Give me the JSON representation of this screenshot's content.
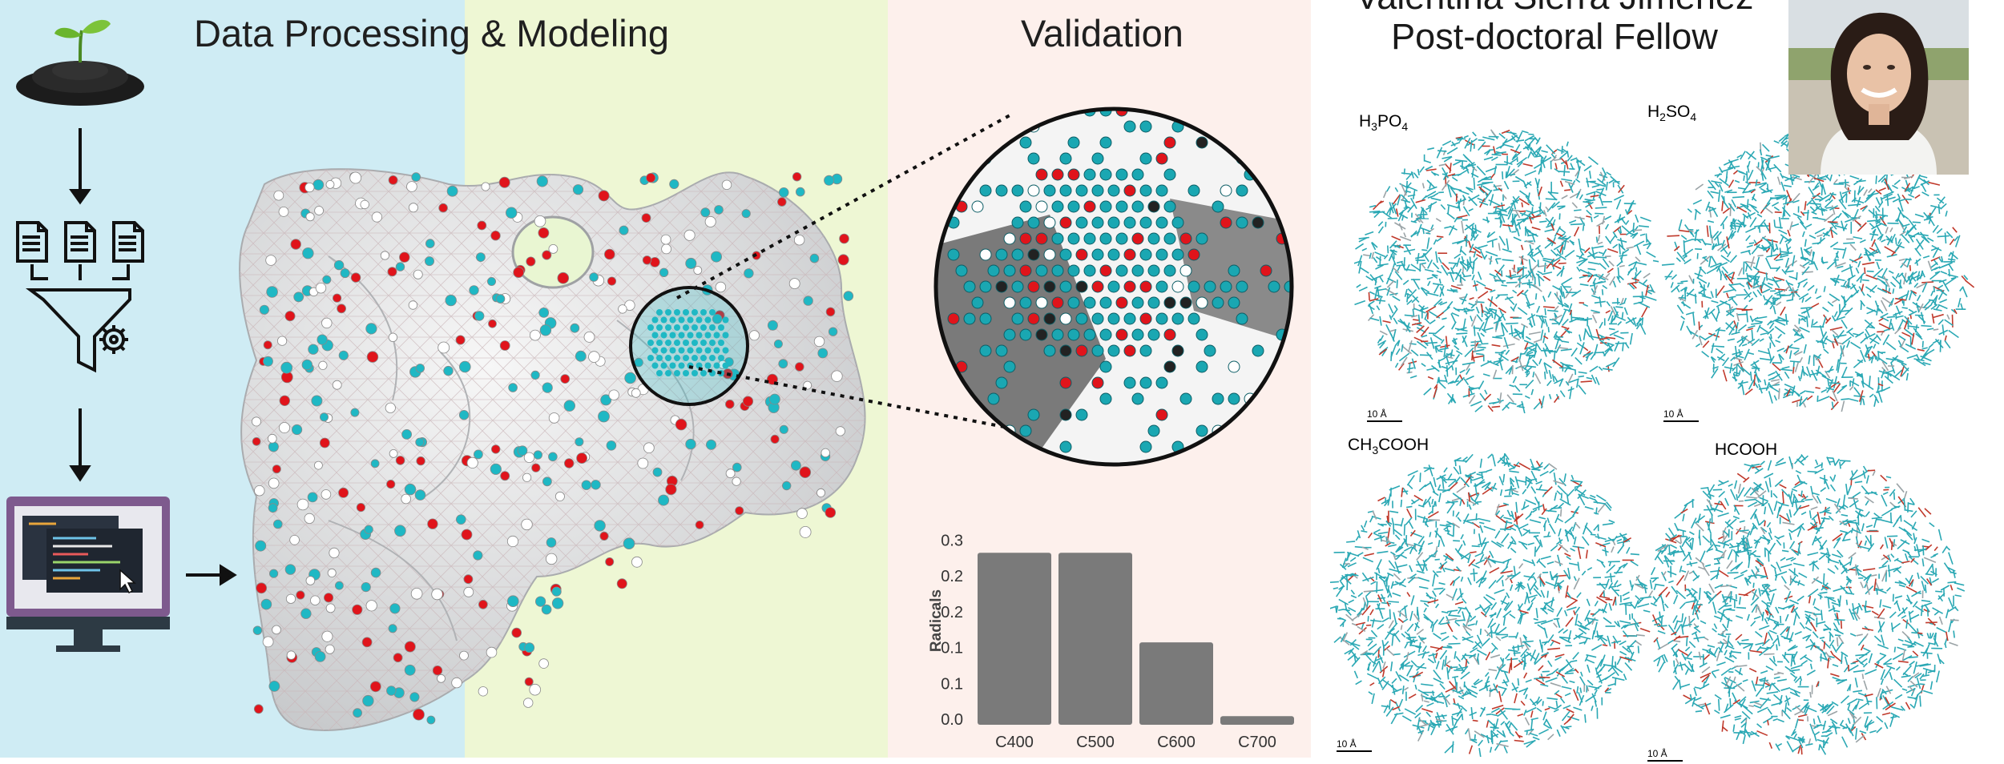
{
  "titles": {
    "left": "Data Processing & Modeling",
    "validation": "Validation"
  },
  "person": {
    "name": "Valentina Sierra Jiménez",
    "role": "Post-doctoral Fellow"
  },
  "structures": [
    {
      "formula": "H",
      "sub1": "3",
      "mid": "PO",
      "sub2": "4",
      "tail": ""
    },
    {
      "formula": "H",
      "sub1": "2",
      "mid": "SO",
      "sub2": "4",
      "tail": ""
    },
    {
      "formula": "CH",
      "sub1": "3",
      "mid": "COOH",
      "sub2": "",
      "tail": ""
    },
    {
      "formula": "HCOOH",
      "sub1": "",
      "mid": "",
      "sub2": "",
      "tail": ""
    }
  ],
  "scale_label": "10 Å",
  "colors": {
    "carbon": "#1fb8c4",
    "oxygen": "#e0141b",
    "hydrogen": "#ffffff",
    "surface": "#e4e6e8",
    "bar": "#7a7a7a"
  },
  "icons": [
    "seedling-icon",
    "document-icon",
    "funnel-gear-icon",
    "computer-code-icon",
    "magnifier-circle-icon"
  ],
  "chart_data": {
    "type": "bar",
    "categories": [
      "C400",
      "C500",
      "C600",
      "C700"
    ],
    "values": [
      0.24,
      0.24,
      0.115,
      0.012
    ],
    "ylabel": "Radicals",
    "ylim": [
      0,
      0.3
    ],
    "yticks": [
      "0.0",
      "0.1",
      "0.1",
      "0.2",
      "0.2",
      "0.3"
    ],
    "ytick_values": [
      0,
      0.05,
      0.1,
      0.15,
      0.2,
      0.25
    ],
    "grid": false
  }
}
